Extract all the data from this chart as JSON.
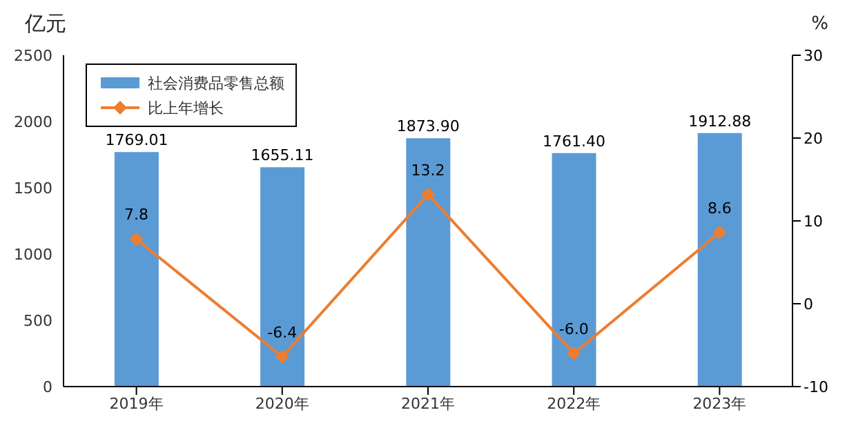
{
  "chart_data": {
    "type": "bar",
    "ylabel": "亿元",
    "y2label": "%",
    "categories": [
      "2019年",
      "2020年",
      "2021年",
      "2022年",
      "2023年"
    ],
    "series": [
      {
        "name": "社会消费品零售总额",
        "color": "#5b9bd5",
        "values": [
          1769.01,
          1655.11,
          1873.9,
          1761.4,
          1912.88
        ],
        "value_labels": [
          "1769.01",
          "1655.11",
          "1873.90",
          "1761.40",
          "1912.88"
        ]
      },
      {
        "name": "比上年增长",
        "type": "line",
        "axis": "y2",
        "color": "#ed7d31",
        "values": [
          7.8,
          -6.4,
          13.2,
          -6.0,
          8.6
        ],
        "value_labels": [
          "7.8",
          "-6.4",
          "13.2",
          "-6.0",
          "8.6"
        ],
        "marker": "diamond"
      }
    ],
    "ylim": [
      0,
      2500
    ],
    "yticks": [
      0,
      500,
      1000,
      1500,
      2000,
      2500
    ],
    "y2lim": [
      -10,
      30
    ],
    "y2ticks": [
      -10,
      0,
      10,
      20,
      30
    ],
    "legend": "top left"
  }
}
